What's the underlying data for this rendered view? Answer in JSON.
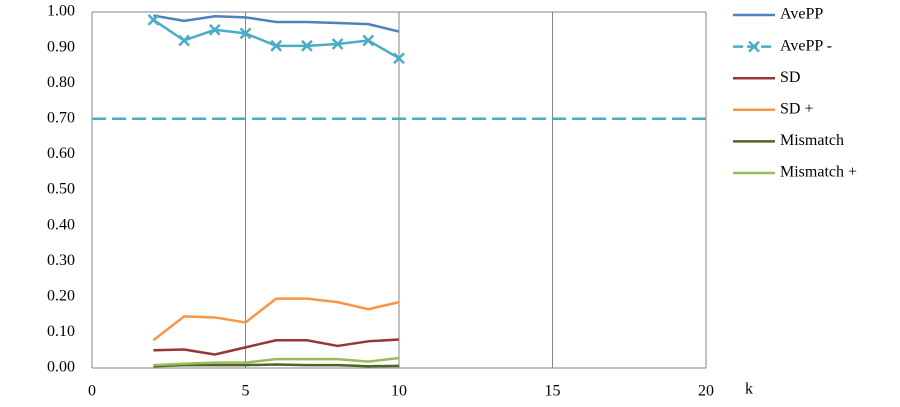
{
  "chart_data": {
    "type": "line",
    "x_label": "k",
    "x": [
      2,
      3,
      4,
      5,
      6,
      7,
      8,
      9,
      10
    ],
    "series": [
      {
        "name": "AvePP",
        "color": "#4f81bd",
        "values": [
          0.99,
          0.975,
          0.988,
          0.985,
          0.972,
          0.972,
          0.969,
          0.966,
          0.945
        ]
      },
      {
        "name": "AvePP -",
        "color": "#4bacc6",
        "marker": "x",
        "dash": true,
        "values": [
          0.978,
          0.92,
          0.95,
          0.94,
          0.905,
          0.905,
          0.91,
          0.92,
          0.87
        ]
      },
      {
        "name": "SD",
        "color": "#953735",
        "values": [
          0.05,
          0.052,
          0.038,
          0.058,
          0.078,
          0.078,
          0.062,
          0.075,
          0.08
        ]
      },
      {
        "name": "SD +",
        "color": "#f79646",
        "values": [
          0.078,
          0.145,
          0.142,
          0.128,
          0.195,
          0.195,
          0.185,
          0.165,
          0.185
        ]
      },
      {
        "name": "Mismatch",
        "color": "#4f6228",
        "values": [
          0.005,
          0.008,
          0.008,
          0.008,
          0.01,
          0.008,
          0.008,
          0.005,
          0.006
        ]
      },
      {
        "name": "Mismatch +",
        "color": "#9bbb59",
        "values": [
          0.008,
          0.012,
          0.015,
          0.015,
          0.025,
          0.025,
          0.025,
          0.018,
          0.028
        ]
      }
    ],
    "hlines": [
      {
        "value": 0.7,
        "color": "#4bacc6",
        "dash": true
      }
    ],
    "xlim": [
      0,
      20
    ],
    "xticks": [
      0,
      5,
      10,
      15,
      20
    ],
    "ylim": [
      0,
      1
    ],
    "yticks": [
      {
        "value": 0,
        "label": "0.00"
      },
      {
        "value": 0.1,
        "label": "0.10"
      },
      {
        "value": 0.2,
        "label": "0.20"
      },
      {
        "value": 0.3,
        "label": "0.30"
      },
      {
        "value": 0.4,
        "label": "0.40"
      },
      {
        "value": 0.5,
        "label": "0.50"
      },
      {
        "value": 0.6,
        "label": "0.60"
      },
      {
        "value": 0.7,
        "label": "0.70"
      },
      {
        "value": 0.8,
        "label": "0.80"
      },
      {
        "value": 0.9,
        "label": "0.90"
      },
      {
        "value": 1,
        "label": "1.00"
      }
    ],
    "grid": "x",
    "legend": "right"
  }
}
